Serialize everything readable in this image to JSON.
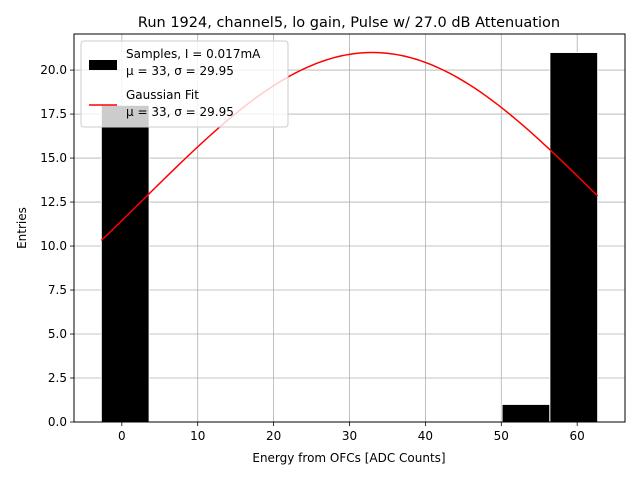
{
  "chart_data": {
    "type": "bar",
    "title": "Run 1924, channel5, lo gain, Pulse w/ 27.0 dB Attenuation",
    "xlabel": "Energy from OFCs [ADC Counts]",
    "ylabel": "Entries",
    "xlim": [
      -6.3,
      66.3
    ],
    "ylim": [
      0,
      22.05
    ],
    "x_ticks": [
      0,
      10,
      20,
      30,
      40,
      50,
      60
    ],
    "x_tick_labels": [
      "0",
      "10",
      "20",
      "30",
      "40",
      "50",
      "60"
    ],
    "y_ticks": [
      0,
      2.5,
      5,
      7.5,
      10,
      12.5,
      15,
      17.5,
      20
    ],
    "y_tick_labels": [
      "0.0",
      "2.5",
      "5.0",
      "7.5",
      "10.0",
      "12.5",
      "15.0",
      "17.5",
      "20.0"
    ],
    "grid": true,
    "legend_position": "top-left",
    "bars": [
      {
        "x0": -2.7,
        "x1": 3.6,
        "value": 18
      },
      {
        "x0": 50.1,
        "x1": 56.4,
        "value": 1
      },
      {
        "x0": 56.4,
        "x1": 62.7,
        "value": 21
      }
    ],
    "bar_color": "#000000",
    "bar_edge_color": "#ffffff",
    "fit": {
      "mu": 33,
      "sigma": 29.95,
      "amplitude": 21,
      "x_range": [
        -2.7,
        62.7
      ],
      "color": "#ff0000"
    },
    "series": [
      {
        "name": "Samples, I = 0.017mA",
        "detail": "μ = 33, σ = 29.95"
      },
      {
        "name": "Gaussian Fit",
        "detail": "μ = 33, σ = 29.95"
      }
    ]
  }
}
